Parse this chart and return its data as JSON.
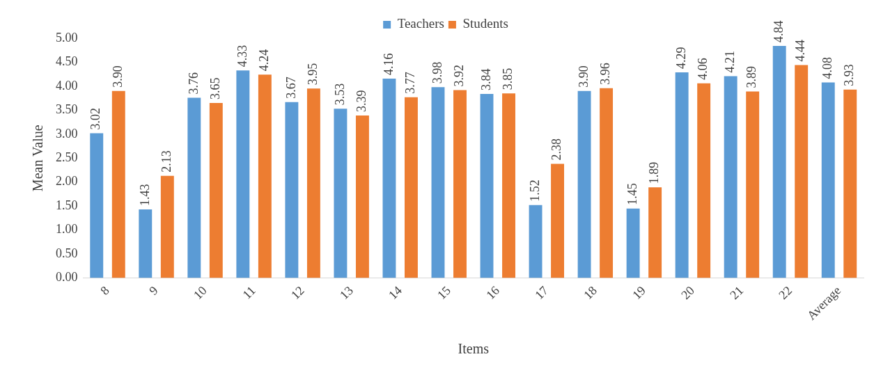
{
  "chart_data": {
    "type": "bar",
    "xlabel": "Items",
    "ylabel": "Mean Value",
    "categories": [
      "8",
      "9",
      "10",
      "11",
      "12",
      "13",
      "14",
      "15",
      "16",
      "17",
      "18",
      "19",
      "20",
      "21",
      "22",
      "Average"
    ],
    "series": [
      {
        "name": "Teachers",
        "color": "#5b9bd5",
        "values": [
          3.02,
          1.43,
          3.76,
          4.33,
          3.67,
          3.53,
          4.16,
          3.98,
          3.84,
          1.52,
          3.9,
          1.45,
          4.29,
          4.21,
          4.84,
          4.08
        ],
        "value_labels": [
          "3.02",
          "1.43",
          "3.76",
          "4.33",
          "3.67",
          "3.53",
          "4.16",
          "3.98",
          "3.84",
          "1.52",
          "3.90",
          "1.45",
          "4.29",
          "4.21",
          "4.84",
          "4.08"
        ]
      },
      {
        "name": "Students",
        "color": "#ed7d31",
        "values": [
          3.9,
          2.13,
          3.65,
          4.24,
          3.95,
          3.39,
          3.77,
          3.92,
          3.85,
          2.38,
          3.96,
          1.89,
          4.06,
          3.89,
          4.44,
          3.93
        ],
        "value_labels": [
          "3.90",
          "2.13",
          "3.65",
          "4.24",
          "3.95",
          "3.39",
          "3.77",
          "3.92",
          "3.85",
          "2.38",
          "3.96",
          "1.89",
          "4.06",
          "3.89",
          "4.44",
          "3.93"
        ]
      }
    ],
    "ylim": [
      0,
      5
    ],
    "yticks": [
      {
        "value": 0,
        "label": "0.00"
      },
      {
        "value": 0.5,
        "label": "0.50"
      },
      {
        "value": 1,
        "label": "1.00"
      },
      {
        "value": 1.5,
        "label": "1.50"
      },
      {
        "value": 2,
        "label": "2.00"
      },
      {
        "value": 2.5,
        "label": "2.50"
      },
      {
        "value": 3,
        "label": "3.00"
      },
      {
        "value": 3.5,
        "label": "3.50"
      },
      {
        "value": 4,
        "label": "4.00"
      },
      {
        "value": 4.5,
        "label": "4.50"
      },
      {
        "value": 5,
        "label": "5.00"
      }
    ],
    "grid": false,
    "legend": "top"
  }
}
